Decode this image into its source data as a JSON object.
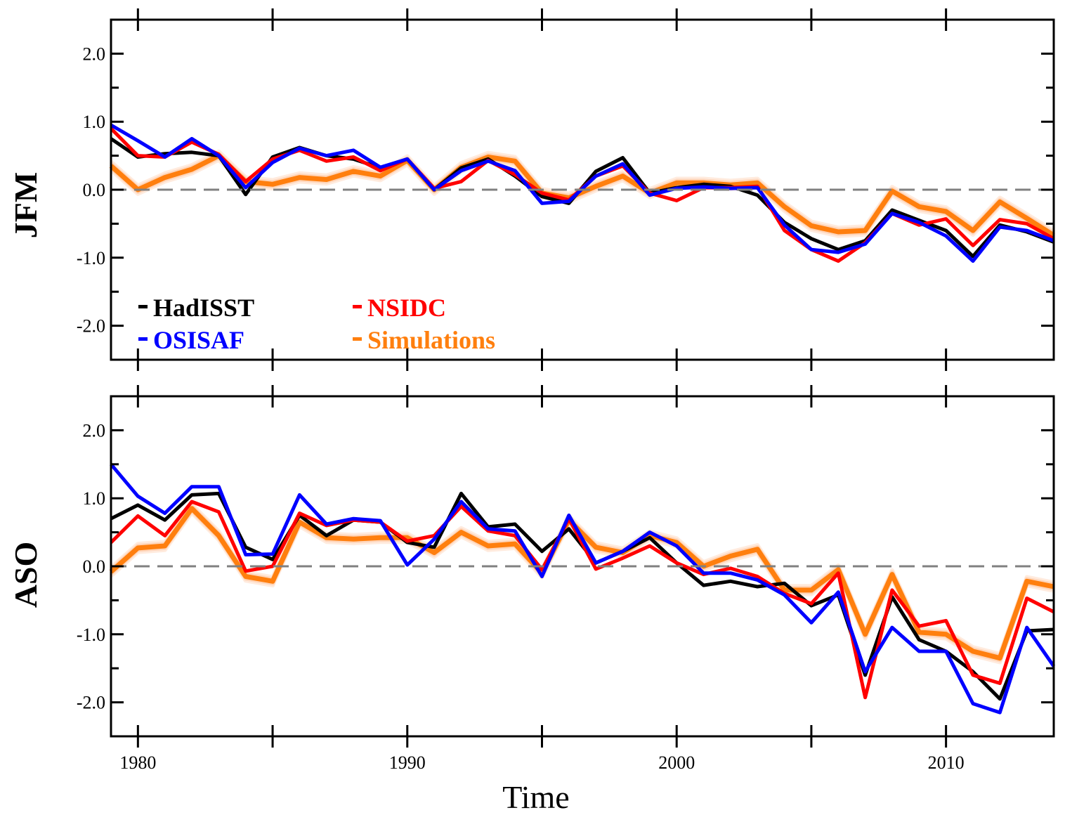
{
  "chart_data": [
    {
      "type": "line",
      "panel": "JFM",
      "ylabel": "JFM",
      "xlabel": "",
      "xlim": [
        1979,
        2014
      ],
      "ylim": [
        -2.5,
        2.5
      ],
      "yticks": [
        "2.0",
        "1.0",
        "0.0",
        "-1.0",
        "-2.0"
      ],
      "zero_line": "dashed gray",
      "legend_placement": "lower-left",
      "x": [
        1979,
        1980,
        1981,
        1982,
        1983,
        1984,
        1985,
        1986,
        1987,
        1988,
        1989,
        1990,
        1991,
        1992,
        1993,
        1994,
        1995,
        1996,
        1997,
        1998,
        1999,
        2000,
        2001,
        2002,
        2003,
        2004,
        2005,
        2006,
        2007,
        2008,
        2009,
        2010,
        2011,
        2012,
        2013,
        2014
      ],
      "series": [
        {
          "name": "Simulations",
          "color": "#ff7f0e",
          "values": [
            0.35,
            0.0,
            0.18,
            0.3,
            0.5,
            0.12,
            0.08,
            0.18,
            0.15,
            0.27,
            0.2,
            0.43,
            0.0,
            0.33,
            0.48,
            0.42,
            -0.05,
            -0.12,
            0.05,
            0.2,
            -0.05,
            0.1,
            0.1,
            0.07,
            0.1,
            -0.25,
            -0.53,
            -0.62,
            -0.6,
            -0.02,
            -0.25,
            -0.32,
            -0.6,
            -0.18,
            -0.42,
            -0.67
          ]
        },
        {
          "name": "HadISST",
          "color": "#000000",
          "values": [
            0.75,
            0.48,
            0.53,
            0.55,
            0.5,
            -0.07,
            0.48,
            0.62,
            0.5,
            0.45,
            0.32,
            0.45,
            0.0,
            0.32,
            0.45,
            0.2,
            -0.1,
            -0.2,
            0.27,
            0.47,
            -0.05,
            0.03,
            0.08,
            0.05,
            -0.08,
            -0.48,
            -0.72,
            -0.88,
            -0.75,
            -0.3,
            -0.45,
            -0.6,
            -0.98,
            -0.52,
            -0.62,
            -0.77
          ]
        },
        {
          "name": "NSIDC",
          "color": "#ff0000",
          "values": [
            0.9,
            0.5,
            0.48,
            0.7,
            0.52,
            0.12,
            0.45,
            0.58,
            0.42,
            0.48,
            0.28,
            0.45,
            0.02,
            0.12,
            0.43,
            0.22,
            -0.05,
            -0.15,
            0.2,
            0.35,
            -0.05,
            -0.16,
            0.03,
            0.03,
            0.05,
            -0.6,
            -0.88,
            -1.05,
            -0.78,
            -0.35,
            -0.52,
            -0.43,
            -0.82,
            -0.44,
            -0.5,
            -0.72
          ]
        },
        {
          "name": "OSISAF",
          "color": "#0000ff",
          "values": [
            0.95,
            0.72,
            0.48,
            0.75,
            0.5,
            0.03,
            0.4,
            0.61,
            0.5,
            0.58,
            0.33,
            0.45,
            0.0,
            0.28,
            0.42,
            0.28,
            -0.2,
            -0.17,
            0.2,
            0.38,
            -0.08,
            0.02,
            0.04,
            0.02,
            0.03,
            -0.52,
            -0.88,
            -0.92,
            -0.8,
            -0.35,
            -0.48,
            -0.68,
            -1.05,
            -0.55,
            -0.6,
            -0.75
          ]
        }
      ],
      "legend": [
        {
          "label": "HadISST",
          "color": "#000000"
        },
        {
          "label": "NSIDC",
          "color": "#ff0000"
        },
        {
          "label": "OSISAF",
          "color": "#0000ff"
        },
        {
          "label": "Simulations",
          "color": "#ff7f0e"
        }
      ]
    },
    {
      "type": "line",
      "panel": "ASO",
      "ylabel": "ASO",
      "xlabel": "Time",
      "xlim": [
        1979,
        2014
      ],
      "ylim": [
        -2.5,
        2.5
      ],
      "yticks": [
        "2.0",
        "1.0",
        "0.0",
        "-1.0",
        "-2.0"
      ],
      "xticks": [
        "1980",
        "1990",
        "2000",
        "2010"
      ],
      "zero_line": "dashed gray",
      "x": [
        1979,
        1980,
        1981,
        1982,
        1983,
        1984,
        1985,
        1986,
        1987,
        1988,
        1989,
        1990,
        1991,
        1992,
        1993,
        1994,
        1995,
        1996,
        1997,
        1998,
        1999,
        2000,
        2001,
        2002,
        2003,
        2004,
        2005,
        2006,
        2007,
        2008,
        2009,
        2010,
        2011,
        2012,
        2013,
        2014
      ],
      "series": [
        {
          "name": "Simulations",
          "color": "#ff7f0e",
          "values": [
            -0.08,
            0.27,
            0.3,
            0.85,
            0.45,
            -0.15,
            -0.22,
            0.65,
            0.42,
            0.4,
            0.42,
            0.42,
            0.2,
            0.5,
            0.3,
            0.33,
            -0.1,
            0.68,
            0.28,
            0.2,
            0.45,
            0.35,
            0.0,
            0.15,
            0.25,
            -0.35,
            -0.35,
            -0.05,
            -1.0,
            -0.12,
            -0.97,
            -1.0,
            -1.25,
            -1.35,
            -0.22,
            -0.3
          ]
        },
        {
          "name": "HadISST",
          "color": "#000000",
          "values": [
            0.7,
            0.9,
            0.68,
            1.05,
            1.07,
            0.28,
            0.1,
            0.75,
            0.45,
            0.68,
            0.65,
            0.35,
            0.28,
            1.07,
            0.58,
            0.62,
            0.22,
            0.55,
            0.05,
            0.22,
            0.42,
            0.05,
            -0.28,
            -0.22,
            -0.3,
            -0.25,
            -0.58,
            -0.42,
            -1.6,
            -0.45,
            -1.08,
            -1.25,
            -1.55,
            -1.95,
            -0.95,
            -0.93
          ]
        },
        {
          "name": "NSIDC",
          "color": "#ff0000",
          "values": [
            0.35,
            0.74,
            0.45,
            0.95,
            0.8,
            -0.07,
            0.0,
            0.78,
            0.6,
            0.68,
            0.65,
            0.37,
            0.45,
            0.88,
            0.52,
            0.45,
            -0.05,
            0.7,
            -0.04,
            0.12,
            0.3,
            0.05,
            -0.12,
            -0.03,
            -0.15,
            -0.4,
            -0.55,
            -0.1,
            -1.93,
            -0.35,
            -0.88,
            -0.8,
            -1.6,
            -1.72,
            -0.47,
            -0.67
          ]
        },
        {
          "name": "OSISAF",
          "color": "#0000ff",
          "values": [
            1.5,
            1.03,
            0.78,
            1.17,
            1.17,
            0.17,
            0.18,
            1.05,
            0.62,
            0.7,
            0.67,
            0.02,
            0.4,
            0.95,
            0.55,
            0.52,
            -0.15,
            0.75,
            0.05,
            0.22,
            0.5,
            0.3,
            -0.1,
            -0.1,
            -0.2,
            -0.42,
            -0.83,
            -0.38,
            -1.55,
            -0.9,
            -1.25,
            -1.25,
            -2.02,
            -2.15,
            -0.9,
            -1.47
          ]
        }
      ]
    }
  ]
}
